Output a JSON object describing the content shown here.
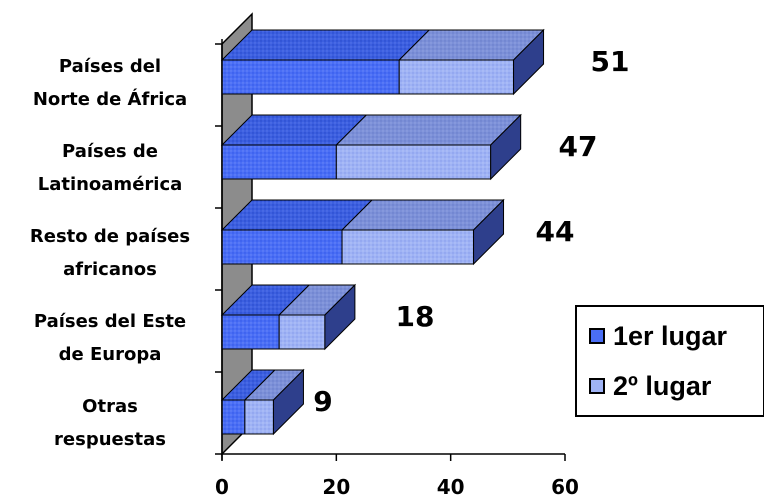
{
  "chart_data": {
    "type": "bar",
    "orientation": "horizontal",
    "stacked": true,
    "three_d": true,
    "categories": [
      [
        "Países del",
        "Norte de África"
      ],
      [
        "Países de",
        "Latinoamérica"
      ],
      [
        "Resto de países",
        "africanos"
      ],
      [
        "Países del Este",
        "de Europa"
      ],
      [
        "Otras",
        "respuestas"
      ]
    ],
    "series": [
      {
        "name": "1er lugar",
        "values": [
          31,
          20,
          21,
          10,
          4
        ]
      },
      {
        "name": "2º lugar",
        "values": [
          20,
          27,
          23,
          8,
          5
        ]
      }
    ],
    "totals": [
      "51",
      "47",
      "44",
      "18",
      "9"
    ],
    "xlim": [
      0,
      60
    ],
    "xticks": [
      "0",
      "20",
      "40",
      "60"
    ],
    "grid": false,
    "legend_position": "right",
    "colors": {
      "series_1": "#4a6ef5",
      "series_2": "#9fb3f5",
      "wall": "#8c8c8c"
    }
  }
}
